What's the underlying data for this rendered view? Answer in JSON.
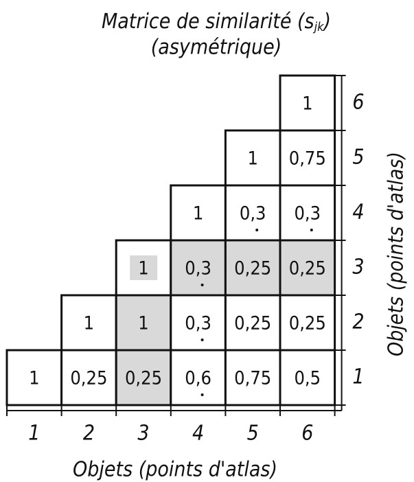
{
  "title": {
    "main": "Matrice de similarité (s",
    "subscript": "jk",
    "end": ")"
  },
  "subtitle": "(asymétrique)",
  "x_axis": {
    "label": "Objets (points d'atlas)",
    "ticks": [
      "1",
      "2",
      "3",
      "4",
      "5",
      "6"
    ]
  },
  "y_axis": {
    "label": "Objets (points d'atlas)",
    "ticks": [
      "1",
      "2",
      "3",
      "4",
      "5",
      "6"
    ]
  },
  "matrix": {
    "rows": [
      [
        "1",
        "0,25",
        "0,25",
        "0,6",
        "0,75",
        "0,5"
      ],
      [
        "1",
        "1",
        "0,3",
        "0,25",
        "0,25"
      ],
      [
        "1",
        "0,3",
        "0,25",
        "0,25"
      ],
      [
        "1",
        "0,3",
        "0,3"
      ],
      [
        "1",
        "0,75"
      ],
      [
        "1"
      ]
    ]
  }
}
